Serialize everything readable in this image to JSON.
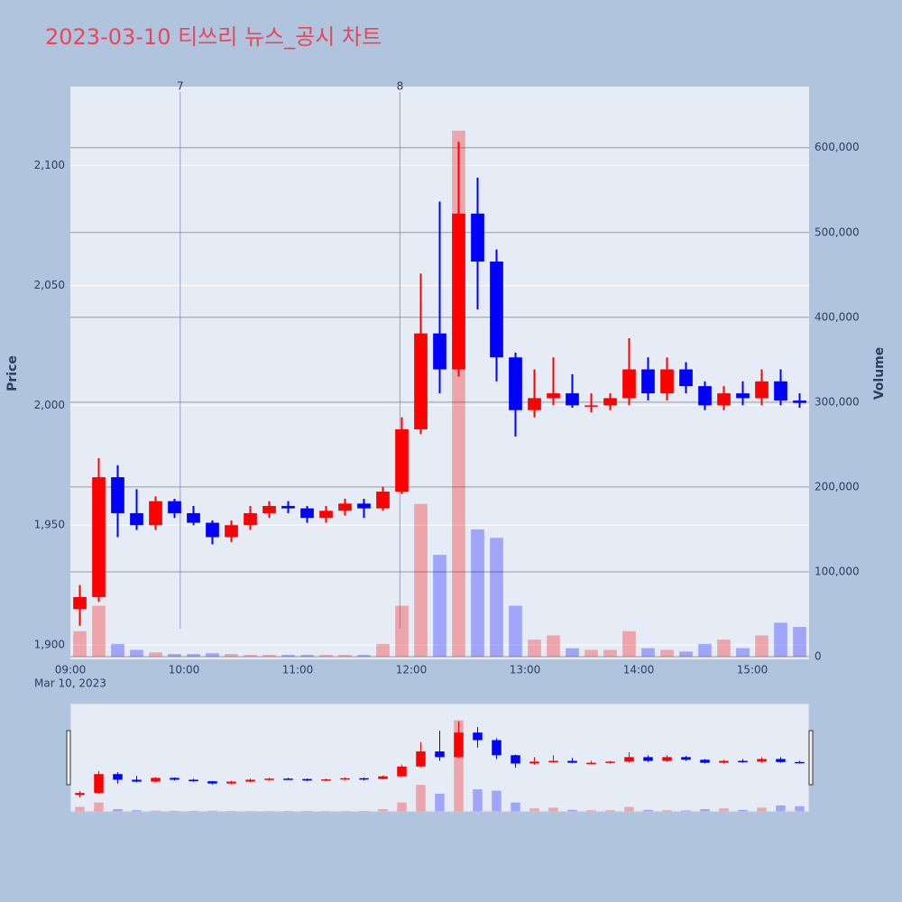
{
  "chart_data": {
    "type": "candlestick",
    "title": "2023-03-10 티쓰리 뉴스_공시 차트",
    "y_label": "Price",
    "y2_label": "Volume",
    "date_label": "Mar 10, 2023",
    "x": [
      "09:00",
      "09:10",
      "09:20",
      "09:30",
      "09:40",
      "09:50",
      "10:00",
      "10:10",
      "10:20",
      "10:30",
      "10:40",
      "10:50",
      "11:00",
      "11:10",
      "11:20",
      "11:30",
      "11:40",
      "11:50",
      "12:00",
      "12:10",
      "12:20",
      "12:30",
      "12:40",
      "12:50",
      "13:00",
      "13:10",
      "13:20",
      "13:30",
      "13:40",
      "13:50",
      "14:00",
      "14:10",
      "14:20",
      "14:30",
      "14:40",
      "14:50",
      "15:00",
      "15:10",
      "15:20"
    ],
    "open": [
      1915,
      1920,
      1970,
      1955,
      1950,
      1960,
      1955,
      1951,
      1945,
      1950,
      1955,
      1958,
      1957,
      1953,
      1956,
      1959,
      1957,
      1964,
      1990,
      2030,
      2015,
      2080,
      2060,
      2020,
      1998,
      2003,
      2005,
      2000,
      2000,
      2003,
      2015,
      2005,
      2015,
      2008,
      2000,
      2005,
      2003,
      2010,
      2002
    ],
    "high": [
      1925,
      1978,
      1975,
      1965,
      1962,
      1961,
      1958,
      1952,
      1952,
      1958,
      1960,
      1960,
      1958,
      1958,
      1961,
      1961,
      1966,
      1995,
      2055,
      2085,
      2110,
      2095,
      2065,
      2022,
      2015,
      2020,
      2013,
      2005,
      2005,
      2028,
      2020,
      2020,
      2018,
      2010,
      2008,
      2010,
      2015,
      2015,
      2005
    ],
    "low": [
      1908,
      1918,
      1945,
      1948,
      1948,
      1953,
      1950,
      1942,
      1943,
      1948,
      1953,
      1955,
      1951,
      1951,
      1954,
      1953,
      1956,
      1963,
      1988,
      2005,
      2012,
      2040,
      2010,
      1987,
      1995,
      2000,
      1999,
      1997,
      1998,
      2000,
      2002,
      2002,
      2005,
      1998,
      1998,
      2000,
      2000,
      2000,
      1999
    ],
    "close": [
      1920,
      1970,
      1955,
      1950,
      1960,
      1955,
      1951,
      1945,
      1950,
      1955,
      1958,
      1957,
      1953,
      1956,
      1959,
      1957,
      1964,
      1990,
      2030,
      2015,
      2080,
      2060,
      2020,
      1998,
      2003,
      2005,
      2000,
      2000,
      2003,
      2015,
      2005,
      2015,
      2008,
      2000,
      2005,
      2003,
      2010,
      2002,
      2001
    ],
    "volume": [
      30000,
      60000,
      15000,
      8000,
      5000,
      3000,
      3000,
      4000,
      3000,
      2000,
      2000,
      2000,
      2000,
      2000,
      2000,
      2000,
      15000,
      60000,
      180000,
      120000,
      620000,
      150000,
      140000,
      60000,
      20000,
      25000,
      10000,
      8000,
      8000,
      30000,
      10000,
      8000,
      6000,
      15000,
      20000,
      10000,
      25000,
      40000,
      35000
    ],
    "increasing_color": "#ff0000",
    "decreasing_color": "#0000ff",
    "xlim": [
      "09:00",
      "15:30"
    ],
    "xticks": [
      "09:00",
      "10:00",
      "11:00",
      "12:00",
      "13:00",
      "14:00",
      "15:00"
    ],
    "ylim": [
      1894,
      2133
    ],
    "yticks": [
      {
        "value": 1900,
        "label": "1,900"
      },
      {
        "value": 1950,
        "label": "1,950"
      },
      {
        "value": 2000,
        "label": "2,000"
      },
      {
        "value": 2050,
        "label": "2,050"
      },
      {
        "value": 2100,
        "label": "2,100"
      }
    ],
    "y2lim": [
      -3200,
      672000
    ],
    "y2ticks": [
      0,
      {
        "value": 100000,
        "label": "100,000"
      },
      {
        "value": 200000,
        "label": "200,000"
      },
      {
        "value": 300000,
        "label": "300,000"
      },
      {
        "value": 400000,
        "label": "400,000"
      },
      {
        "value": 500000,
        "label": "500,000"
      },
      {
        "value": 600000,
        "label": "600,000"
      }
    ],
    "annotations": [
      {
        "x": "09:58",
        "text": "7"
      },
      {
        "x": "11:54",
        "text": "8"
      }
    ],
    "grid": true,
    "rangeslider": true
  }
}
